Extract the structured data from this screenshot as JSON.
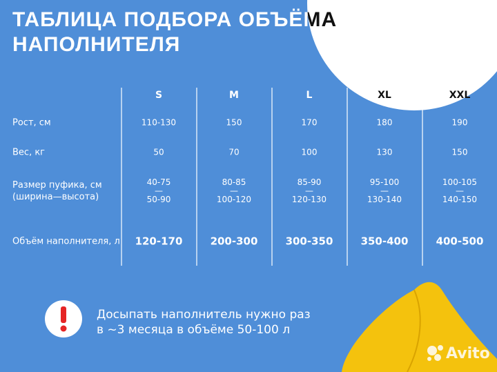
{
  "header": {
    "title_lines": [
      "ТАБЛИЦА ПОДБОРА ОБЪЁМА",
      "НАПОЛНИТЕЛЯ"
    ]
  },
  "table": {
    "columns": [
      "S",
      "M",
      "L",
      "XL",
      "XXL"
    ],
    "rows": [
      {
        "label": [
          "Рост, см"
        ],
        "cells": [
          [
            "110-130"
          ],
          [
            "150"
          ],
          [
            "170"
          ],
          [
            "180"
          ],
          [
            "190"
          ]
        ]
      },
      {
        "label": [
          "Вес, кг"
        ],
        "cells": [
          [
            "50"
          ],
          [
            "70"
          ],
          [
            "100"
          ],
          [
            "130"
          ],
          [
            "150"
          ]
        ]
      },
      {
        "label": [
          "Размер пуфика, см",
          "(ширина—высота)"
        ],
        "cells": [
          [
            "40-75",
            "—",
            "50-90"
          ],
          [
            "80-85",
            "—",
            "100-120"
          ],
          [
            "85-90",
            "—",
            "120-130"
          ],
          [
            "95-100",
            "—",
            "130-140"
          ],
          [
            "100-105",
            "—",
            "140-150"
          ]
        ]
      },
      {
        "label": [
          "Объём наполнителя, л"
        ],
        "cells": [
          [
            "120-170"
          ],
          [
            "200-300"
          ],
          [
            "300-350"
          ],
          [
            "350-400"
          ],
          [
            "400-500"
          ]
        ]
      }
    ]
  },
  "note": {
    "lines": [
      "Досыпать наполнитель нужно раз",
      "в ~3 месяца в объёме 50-100 л"
    ]
  },
  "watermark": "Avito"
}
